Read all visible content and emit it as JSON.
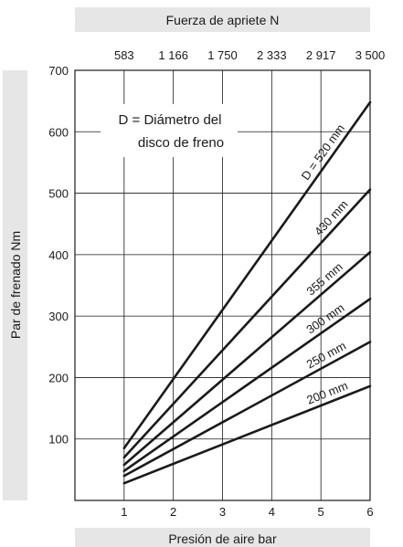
{
  "chart_data": {
    "type": "line",
    "top_axis_label": "Fuerza de apriete N",
    "top_ticks": [
      "583",
      "1 166",
      "1 750",
      "2 333",
      "2 917",
      "3 500"
    ],
    "xlabel": "Presión de aire bar",
    "ylabel": "Par de frenado Nm",
    "x_ticks": [
      1,
      2,
      3,
      4,
      5,
      6
    ],
    "y_ticks": [
      100,
      200,
      300,
      400,
      500,
      600,
      700
    ],
    "xlim": [
      0,
      6
    ],
    "ylim": [
      0,
      700
    ],
    "grid": true,
    "note": [
      "D = Diámetro del",
      "disco de freno"
    ],
    "series": [
      {
        "name": "D = 520 mm",
        "x": [
          1,
          6
        ],
        "y": [
          85,
          648
        ]
      },
      {
        "name": "430 mm",
        "x": [
          1,
          6
        ],
        "y": [
          70,
          506
        ]
      },
      {
        "name": "355 mm",
        "x": [
          1,
          6
        ],
        "y": [
          58,
          404
        ]
      },
      {
        "name": "300 mm",
        "x": [
          1,
          6
        ],
        "y": [
          48,
          328
        ]
      },
      {
        "name": "250 mm",
        "x": [
          1,
          6
        ],
        "y": [
          40,
          258
        ]
      },
      {
        "name": "200 mm",
        "x": [
          1,
          6
        ],
        "y": [
          28,
          186
        ]
      }
    ]
  }
}
